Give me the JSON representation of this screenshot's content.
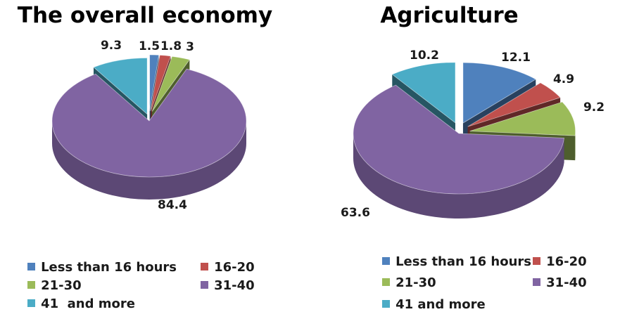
{
  "colors": {
    "less_than_16": "#4F81BD",
    "h16_20": "#C0504D",
    "h21_30": "#9BBB59",
    "h31_40": "#8064A2",
    "h41_more": "#4BACC6"
  },
  "chart_data": [
    {
      "type": "pie",
      "style": "3d-exploded",
      "title": "The overall economy",
      "categories": [
        "Less than 16 hours",
        "16-20",
        "21-30",
        "31-40",
        "41  and more"
      ],
      "values": [
        1.5,
        1.8,
        3,
        84.4,
        9.3
      ],
      "value_labels": [
        "1.5",
        "1.8",
        "3",
        "84.4",
        "9.3"
      ],
      "legend_placement": "bottom"
    },
    {
      "type": "pie",
      "style": "3d-exploded",
      "title": "Agriculture",
      "categories": [
        "Less than 16 hours",
        "16-20",
        "21-30",
        "31-40",
        "41 and more"
      ],
      "values": [
        12.1,
        4.9,
        9.2,
        63.6,
        10.2
      ],
      "value_labels": [
        "12.1",
        "4.9",
        "9.2",
        "63.6",
        "10.2"
      ],
      "legend_placement": "bottom"
    }
  ]
}
